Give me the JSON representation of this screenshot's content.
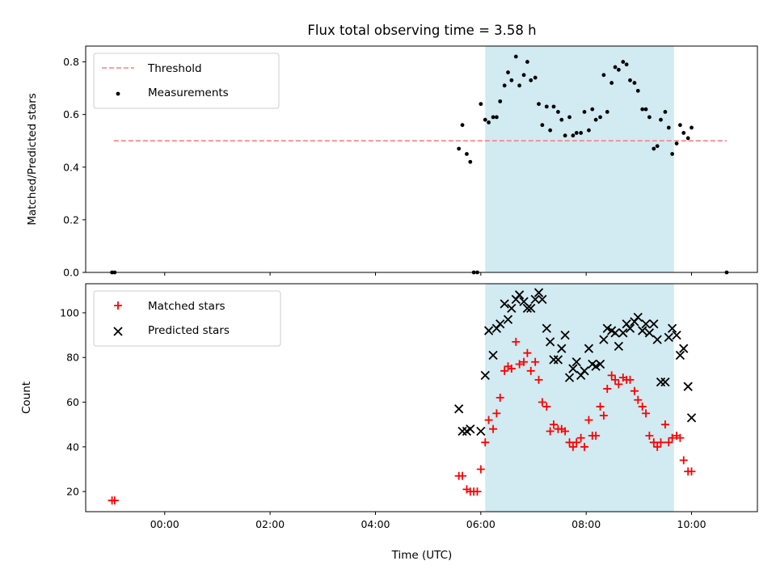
{
  "title": "Flux total observing time = 3.58 h",
  "xlabel": "Time (UTC)",
  "x_ticks": [
    "00:00",
    "02:00",
    "04:00",
    "06:00",
    "08:00",
    "10:00"
  ],
  "colors": {
    "threshold": "#ff7f7f",
    "measurements": "#000000",
    "matched": "#ff0000",
    "predicted": "#000000",
    "span": "#add8e6"
  },
  "chart_data": [
    {
      "type": "scatter",
      "ylabel": "Matched/Predicted stars",
      "xlim": [
        "-01:30",
        "11:15"
      ],
      "ylim": [
        0,
        0.86
      ],
      "yticks": [
        "0.0",
        "0.2",
        "0.4",
        "0.6",
        "0.8"
      ],
      "shaded_span": [
        "06:05",
        "09:40"
      ],
      "legend": {
        "placement": "top-left",
        "entries": [
          "Threshold",
          "Measurements"
        ]
      },
      "threshold": {
        "name": "Threshold",
        "y": 0.5,
        "x_from": "-00:58",
        "x_to": "10:40"
      },
      "series": [
        {
          "name": "Measurements",
          "points": [
            [
              "-01:00",
              0.0
            ],
            [
              "-00:57",
              0.0
            ],
            [
              "05:35",
              0.47
            ],
            [
              "05:39",
              0.56
            ],
            [
              "05:44",
              0.45
            ],
            [
              "05:48",
              0.42
            ],
            [
              "05:52",
              0.0
            ],
            [
              "05:56",
              0.0
            ],
            [
              "06:00",
              0.64
            ],
            [
              "06:05",
              0.58
            ],
            [
              "06:09",
              0.57
            ],
            [
              "06:14",
              0.59
            ],
            [
              "06:18",
              0.59
            ],
            [
              "06:22",
              0.65
            ],
            [
              "06:27",
              0.71
            ],
            [
              "06:31",
              0.76
            ],
            [
              "06:35",
              0.73
            ],
            [
              "06:40",
              0.82
            ],
            [
              "06:44",
              0.71
            ],
            [
              "06:49",
              0.75
            ],
            [
              "06:53",
              0.8
            ],
            [
              "06:57",
              0.73
            ],
            [
              "07:02",
              0.74
            ],
            [
              "07:06",
              0.64
            ],
            [
              "07:10",
              0.56
            ],
            [
              "07:15",
              0.63
            ],
            [
              "07:19",
              0.54
            ],
            [
              "07:23",
              0.63
            ],
            [
              "07:28",
              0.61
            ],
            [
              "07:32",
              0.58
            ],
            [
              "07:36",
              0.52
            ],
            [
              "07:41",
              0.59
            ],
            [
              "07:45",
              0.52
            ],
            [
              "07:49",
              0.53
            ],
            [
              "07:54",
              0.53
            ],
            [
              "07:58",
              0.61
            ],
            [
              "08:03",
              0.54
            ],
            [
              "08:07",
              0.62
            ],
            [
              "08:11",
              0.58
            ],
            [
              "08:16",
              0.59
            ],
            [
              "08:20",
              0.75
            ],
            [
              "08:24",
              0.61
            ],
            [
              "08:29",
              0.72
            ],
            [
              "08:33",
              0.78
            ],
            [
              "08:37",
              0.77
            ],
            [
              "08:42",
              0.8
            ],
            [
              "08:46",
              0.79
            ],
            [
              "08:50",
              0.73
            ],
            [
              "08:55",
              0.72
            ],
            [
              "08:59",
              0.69
            ],
            [
              "09:04",
              0.62
            ],
            [
              "09:08",
              0.62
            ],
            [
              "09:12",
              0.59
            ],
            [
              "09:17",
              0.47
            ],
            [
              "09:21",
              0.48
            ],
            [
              "09:25",
              0.58
            ],
            [
              "09:30",
              0.61
            ],
            [
              "09:34",
              0.55
            ],
            [
              "09:38",
              0.45
            ],
            [
              "09:43",
              0.49
            ],
            [
              "09:47",
              0.56
            ],
            [
              "09:51",
              0.53
            ],
            [
              "09:56",
              0.51
            ],
            [
              "10:00",
              0.55
            ],
            [
              "10:40",
              0.0
            ]
          ]
        }
      ]
    },
    {
      "type": "scatter",
      "ylabel": "Count",
      "xlim": [
        "-01:30",
        "11:15"
      ],
      "ylim": [
        11,
        113
      ],
      "yticks": [
        "20",
        "40",
        "60",
        "80",
        "100"
      ],
      "shaded_span": [
        "06:05",
        "09:40"
      ],
      "legend": {
        "placement": "top-left",
        "entries": [
          "Matched stars",
          "Predicted stars"
        ]
      },
      "series": [
        {
          "name": "Matched stars",
          "points": [
            [
              "-01:00",
              16
            ],
            [
              "-00:57",
              16
            ],
            [
              "05:35",
              27
            ],
            [
              "05:39",
              27
            ],
            [
              "05:44",
              21
            ],
            [
              "05:48",
              20
            ],
            [
              "05:52",
              20
            ],
            [
              "05:56",
              20
            ],
            [
              "06:00",
              30
            ],
            [
              "06:05",
              42
            ],
            [
              "06:09",
              52
            ],
            [
              "06:14",
              48
            ],
            [
              "06:18",
              55
            ],
            [
              "06:22",
              62
            ],
            [
              "06:27",
              74
            ],
            [
              "06:31",
              76
            ],
            [
              "06:35",
              75
            ],
            [
              "06:40",
              87
            ],
            [
              "06:44",
              77
            ],
            [
              "06:49",
              78
            ],
            [
              "06:53",
              82
            ],
            [
              "06:57",
              74
            ],
            [
              "07:02",
              78
            ],
            [
              "07:06",
              70
            ],
            [
              "07:10",
              60
            ],
            [
              "07:15",
              58
            ],
            [
              "07:19",
              47
            ],
            [
              "07:23",
              50
            ],
            [
              "07:28",
              48
            ],
            [
              "07:32",
              48
            ],
            [
              "07:36",
              47
            ],
            [
              "07:41",
              42
            ],
            [
              "07:45",
              40
            ],
            [
              "07:49",
              42
            ],
            [
              "07:54",
              44
            ],
            [
              "07:58",
              40
            ],
            [
              "08:03",
              52
            ],
            [
              "08:07",
              45
            ],
            [
              "08:11",
              45
            ],
            [
              "08:16",
              58
            ],
            [
              "08:20",
              54
            ],
            [
              "08:24",
              66
            ],
            [
              "08:29",
              72
            ],
            [
              "08:33",
              70
            ],
            [
              "08:37",
              68
            ],
            [
              "08:42",
              71
            ],
            [
              "08:46",
              70
            ],
            [
              "08:50",
              70
            ],
            [
              "08:55",
              65
            ],
            [
              "08:59",
              61
            ],
            [
              "09:04",
              58
            ],
            [
              "09:08",
              55
            ],
            [
              "09:12",
              45
            ],
            [
              "09:17",
              42
            ],
            [
              "09:21",
              40
            ],
            [
              "09:25",
              42
            ],
            [
              "09:30",
              50
            ],
            [
              "09:34",
              42
            ],
            [
              "09:38",
              44
            ],
            [
              "09:43",
              45
            ],
            [
              "09:47",
              44
            ],
            [
              "09:51",
              34
            ],
            [
              "09:56",
              29
            ],
            [
              "10:00",
              29
            ]
          ]
        },
        {
          "name": "Predicted stars",
          "points": [
            [
              "05:35",
              57
            ],
            [
              "05:39",
              47
            ],
            [
              "05:44",
              47
            ],
            [
              "05:48",
              48
            ],
            [
              "06:00",
              47
            ],
            [
              "06:05",
              72
            ],
            [
              "06:09",
              92
            ],
            [
              "06:14",
              81
            ],
            [
              "06:18",
              93
            ],
            [
              "06:22",
              95
            ],
            [
              "06:27",
              104
            ],
            [
              "06:31",
              97
            ],
            [
              "06:35",
              102
            ],
            [
              "06:40",
              106
            ],
            [
              "06:44",
              108
            ],
            [
              "06:49",
              105
            ],
            [
              "06:53",
              102
            ],
            [
              "06:57",
              102
            ],
            [
              "07:02",
              106
            ],
            [
              "07:06",
              109
            ],
            [
              "07:10",
              106
            ],
            [
              "07:15",
              93
            ],
            [
              "07:19",
              87
            ],
            [
              "07:23",
              79
            ],
            [
              "07:28",
              79
            ],
            [
              "07:32",
              84
            ],
            [
              "07:36",
              90
            ],
            [
              "07:41",
              71
            ],
            [
              "07:45",
              75
            ],
            [
              "07:49",
              78
            ],
            [
              "07:54",
              72
            ],
            [
              "07:58",
              74
            ],
            [
              "08:03",
              84
            ],
            [
              "08:07",
              77
            ],
            [
              "08:11",
              76
            ],
            [
              "08:16",
              77
            ],
            [
              "08:20",
              88
            ],
            [
              "08:24",
              93
            ],
            [
              "08:29",
              92
            ],
            [
              "08:33",
              91
            ],
            [
              "08:37",
              85
            ],
            [
              "08:42",
              91
            ],
            [
              "08:46",
              95
            ],
            [
              "08:50",
              93
            ],
            [
              "08:55",
              96
            ],
            [
              "08:59",
              98
            ],
            [
              "09:04",
              92
            ],
            [
              "09:08",
              95
            ],
            [
              "09:12",
              91
            ],
            [
              "09:17",
              95
            ],
            [
              "09:21",
              88
            ],
            [
              "09:25",
              69
            ],
            [
              "09:30",
              69
            ],
            [
              "09:34",
              89
            ],
            [
              "09:38",
              93
            ],
            [
              "09:43",
              90
            ],
            [
              "09:47",
              81
            ],
            [
              "09:51",
              84
            ],
            [
              "09:56",
              67
            ],
            [
              "10:00",
              53
            ]
          ]
        }
      ]
    }
  ]
}
